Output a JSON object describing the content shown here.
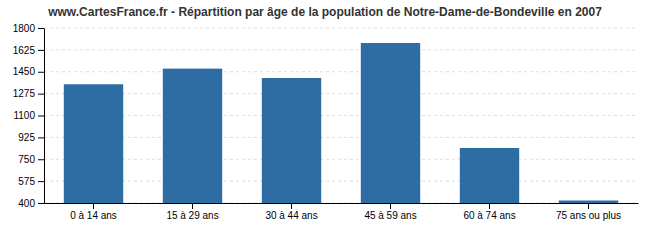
{
  "chart_data": {
    "type": "bar",
    "title": "www.CartesFrance.fr - Répartition par âge de la population de Notre-Dame-de-Bondeville en 2007",
    "categories": [
      "0 à 14 ans",
      "15 à 29 ans",
      "30 à 44 ans",
      "45 à 59 ans",
      "60 à 74 ans",
      "75 ans ou plus"
    ],
    "values": [
      1350,
      1475,
      1400,
      1680,
      840,
      420
    ],
    "color": "#2e6da4",
    "ylim": [
      400,
      1800
    ],
    "yticks": [
      400,
      575,
      750,
      925,
      1100,
      1275,
      1450,
      1625,
      1800
    ],
    "grid": true
  }
}
